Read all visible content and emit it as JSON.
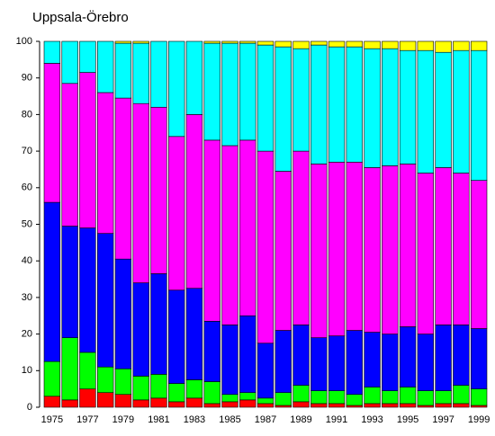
{
  "chart_data": {
    "type": "stacked-bar",
    "title": "Uppsala-Örebro",
    "categories": [
      "1975",
      null,
      "1977",
      null,
      "1979",
      null,
      "1981",
      null,
      "1983",
      null,
      "1985",
      null,
      "1987",
      null,
      "1989",
      null,
      "1991",
      null,
      "1993",
      null,
      "1995",
      null,
      "1997",
      null,
      "1999"
    ],
    "series": [
      {
        "color": "#ff0000",
        "values": [
          3,
          2,
          5,
          4,
          3.5,
          2,
          2.5,
          1.5,
          2.5,
          1,
          1.5,
          2,
          1,
          0.5,
          1.5,
          1,
          1,
          0.5,
          1,
          1,
          1,
          0.5,
          1,
          1,
          0.5
        ]
      },
      {
        "color": "#00ff00",
        "values": [
          9.5,
          17,
          10,
          7,
          7,
          6.5,
          6.5,
          5,
          5,
          6,
          2,
          2,
          1.5,
          3.5,
          4.5,
          3.5,
          3.5,
          3,
          4.5,
          3.5,
          4.5,
          4,
          3.5,
          5,
          4.5
        ]
      },
      {
        "color": "#0000ff",
        "values": [
          43.5,
          30.5,
          34,
          36.5,
          30,
          25.5,
          27.5,
          25.5,
          25,
          16.5,
          19,
          21,
          15,
          17,
          16.5,
          14.5,
          15,
          17.5,
          15,
          15.5,
          16.5,
          15.5,
          18,
          16.5,
          16.5
        ]
      },
      {
        "color": "#ff00ff",
        "values": [
          38,
          39,
          42.5,
          38.5,
          44,
          49,
          45.5,
          42,
          47.5,
          49.5,
          49,
          48,
          52.5,
          43.5,
          47.5,
          47.5,
          47.5,
          46,
          45,
          46,
          44.5,
          44,
          43,
          41.5,
          40.5
        ]
      },
      {
        "color": "#00ffff",
        "values": [
          6,
          11.5,
          8.5,
          14,
          15,
          16.5,
          18,
          26,
          20,
          26.5,
          28,
          26.5,
          29,
          34,
          28,
          32.5,
          31.5,
          31.5,
          32.5,
          32,
          31,
          33.5,
          31.5,
          33.5,
          35.5
        ]
      },
      {
        "color": "#ffff00",
        "values": [
          0,
          0,
          0,
          0,
          0.5,
          0.5,
          0,
          0,
          0,
          0.5,
          0.5,
          0.5,
          1,
          1.5,
          2,
          1,
          1.5,
          1.5,
          2,
          2,
          2.5,
          2.5,
          3,
          2.5,
          2.5
        ]
      }
    ],
    "ylim": [
      0,
      100
    ],
    "yticks": [
      0,
      10,
      20,
      30,
      40,
      50,
      60,
      70,
      80,
      90,
      100
    ]
  }
}
